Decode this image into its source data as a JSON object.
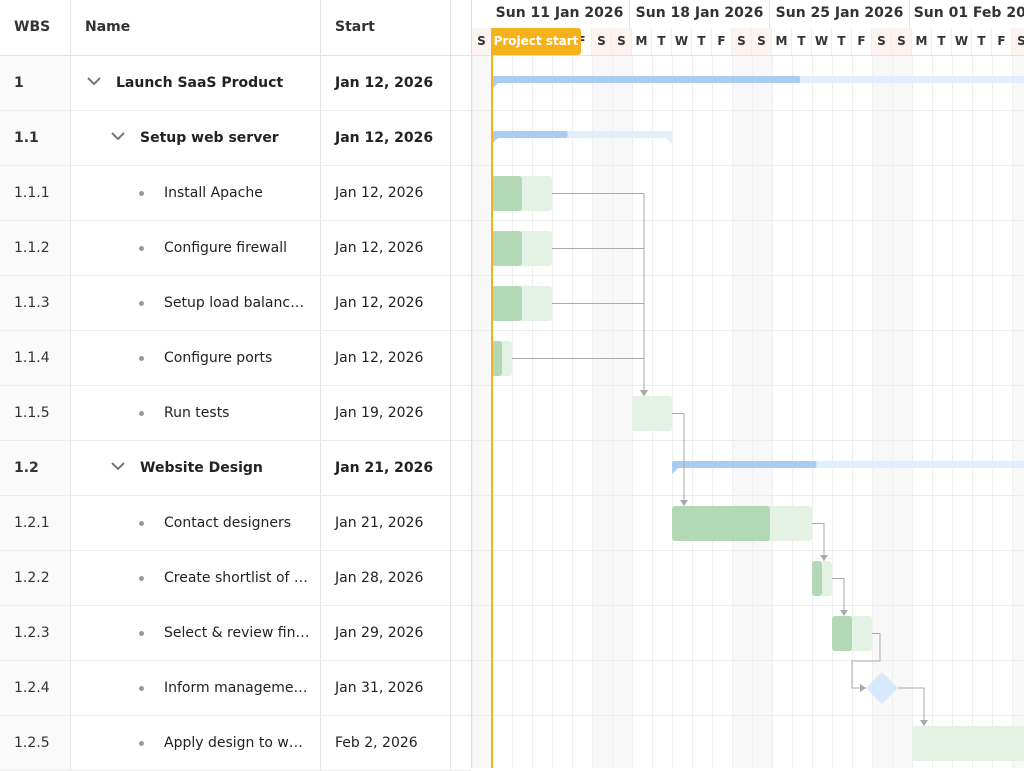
{
  "grid": {
    "columns": {
      "wbs": "WBS",
      "name": "Name",
      "start": "Start"
    },
    "rows": [
      {
        "wbs": "1",
        "name": "Launch SaaS Product",
        "start": "Jan 12, 2026",
        "type": "parent",
        "level": 0
      },
      {
        "wbs": "1.1",
        "name": "Setup web server",
        "start": "Jan 12, 2026",
        "type": "parent",
        "level": 1
      },
      {
        "wbs": "1.1.1",
        "name": "Install Apache",
        "start": "Jan 12, 2026",
        "type": "leaf",
        "level": 2
      },
      {
        "wbs": "1.1.2",
        "name": "Configure firewall",
        "start": "Jan 12, 2026",
        "type": "leaf",
        "level": 2
      },
      {
        "wbs": "1.1.3",
        "name": "Setup load balanc…",
        "start": "Jan 12, 2026",
        "type": "leaf",
        "level": 2
      },
      {
        "wbs": "1.1.4",
        "name": "Configure ports",
        "start": "Jan 12, 2026",
        "type": "leaf",
        "level": 2
      },
      {
        "wbs": "1.1.5",
        "name": "Run tests",
        "start": "Jan 19, 2026",
        "type": "leaf",
        "level": 2
      },
      {
        "wbs": "1.2",
        "name": "Website Design",
        "start": "Jan 21, 2026",
        "type": "parent",
        "level": 1
      },
      {
        "wbs": "1.2.1",
        "name": "Contact designers",
        "start": "Jan 21, 2026",
        "type": "leaf",
        "level": 2
      },
      {
        "wbs": "1.2.2",
        "name": "Create shortlist of t…",
        "start": "Jan 28, 2026",
        "type": "leaf",
        "level": 2
      },
      {
        "wbs": "1.2.3",
        "name": "Select & review fin…",
        "start": "Jan 29, 2026",
        "type": "leaf",
        "level": 2
      },
      {
        "wbs": "1.2.4",
        "name": "Inform manageme…",
        "start": "Jan 31, 2026",
        "type": "leaf",
        "level": 2
      },
      {
        "wbs": "1.2.5",
        "name": "Apply design to we…",
        "start": "Feb 2, 2026",
        "type": "leaf",
        "level": 2
      }
    ]
  },
  "timeline": {
    "weeks": [
      "Sun 11 Jan 2026",
      "Sun 18 Jan 2026",
      "Sun 25 Jan 2026",
      "Sun 01 Feb 2026"
    ],
    "day_letters": [
      "S",
      "M",
      "T",
      "W",
      "T",
      "F",
      "S",
      "S",
      "M",
      "T",
      "W",
      "T",
      "F",
      "S",
      "S",
      "M",
      "T",
      "W",
      "T",
      "F",
      "S",
      "S",
      "M",
      "T",
      "W",
      "T",
      "F",
      "S"
    ],
    "first_visible_day": "Jan 10, 2026",
    "project_start_label": "Project start"
  },
  "tasks": [
    {
      "row": 0,
      "start_day": 1,
      "duration_days": 28,
      "percent_done": 55,
      "kind": "summary"
    },
    {
      "row": 1,
      "start_day": 1,
      "duration_days": 9,
      "percent_done": 42,
      "kind": "summary"
    },
    {
      "row": 2,
      "start_day": 1,
      "duration_days": 3,
      "percent_done": 50,
      "kind": "task"
    },
    {
      "row": 3,
      "start_day": 1,
      "duration_days": 3,
      "percent_done": 50,
      "kind": "task"
    },
    {
      "row": 4,
      "start_day": 1,
      "duration_days": 3,
      "percent_done": 50,
      "kind": "task"
    },
    {
      "row": 5,
      "start_day": 1,
      "duration_days": 1,
      "percent_done": 50,
      "kind": "task"
    },
    {
      "row": 6,
      "start_day": 8,
      "duration_days": 2,
      "percent_done": 0,
      "kind": "task"
    },
    {
      "row": 7,
      "start_day": 10,
      "duration_days": 19,
      "percent_done": 38,
      "kind": "summary"
    },
    {
      "row": 8,
      "start_day": 10,
      "duration_days": 7,
      "percent_done": 70,
      "kind": "task"
    },
    {
      "row": 9,
      "start_day": 17,
      "duration_days": 1,
      "percent_done": 50,
      "kind": "task"
    },
    {
      "row": 10,
      "start_day": 18,
      "duration_days": 2,
      "percent_done": 50,
      "kind": "task"
    },
    {
      "row": 11,
      "start_day": 20,
      "duration_days": 0,
      "percent_done": 0,
      "kind": "milestone"
    },
    {
      "row": 12,
      "start_day": 22,
      "duration_days": 6,
      "percent_done": 0,
      "kind": "task"
    }
  ],
  "dependencies": [
    {
      "from": 2,
      "to": 6
    },
    {
      "from": 3,
      "to": 6
    },
    {
      "from": 4,
      "to": 6
    },
    {
      "from": 5,
      "to": 6
    },
    {
      "from": 6,
      "to": 8
    },
    {
      "from": 8,
      "to": 9
    },
    {
      "from": 9,
      "to": 10
    },
    {
      "from": 10,
      "to": 11
    },
    {
      "from": 11,
      "to": 12
    }
  ],
  "colors": {
    "summary_done": "#a9cdf0",
    "summary_rest": "#e1eefb",
    "task_done": "#b3d8b5",
    "task_rest": "#e4f2e5",
    "milestone": "#d7e9fb",
    "marker": "#f5b21b",
    "dependency": "#aaaaaa"
  }
}
